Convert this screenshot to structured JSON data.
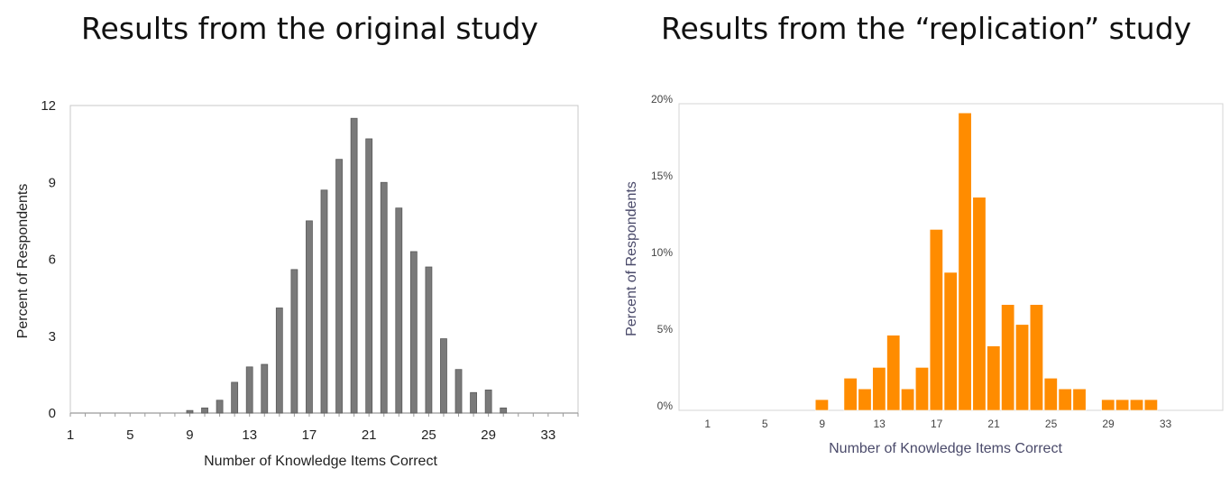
{
  "headings": {
    "left": "Results from the original study",
    "right": "Results from the “replication” study"
  },
  "chart_data": [
    {
      "type": "bar",
      "title": "Results from the original study",
      "xlabel": "Number of Knowledge Items Correct",
      "ylabel": "Percent of Respondents",
      "x_ticks": [
        "1",
        "5",
        "9",
        "13",
        "17",
        "21",
        "25",
        "29",
        "33"
      ],
      "y_ticks": [
        "0",
        "3",
        "6",
        "9",
        "12"
      ],
      "ylim": [
        0,
        12
      ],
      "xlim": [
        1,
        35
      ],
      "color": "#7a7a7a",
      "x": [
        9,
        10,
        11,
        12,
        13,
        14,
        15,
        16,
        17,
        18,
        19,
        20,
        21,
        22,
        23,
        24,
        25,
        26,
        27,
        28,
        29,
        30
      ],
      "values": [
        0.1,
        0.2,
        0.5,
        1.2,
        1.8,
        1.9,
        4.1,
        5.6,
        7.5,
        8.7,
        9.9,
        11.5,
        10.7,
        9.0,
        8.0,
        6.3,
        5.7,
        2.9,
        1.7,
        0.8,
        0.9,
        0.2
      ],
      "grid": false
    },
    {
      "type": "bar",
      "title": "Results from the “replication” study",
      "xlabel": "Number of Knowledge Items Correct",
      "ylabel": "Percent of Respondents",
      "x_ticks": [
        "1",
        "5",
        "9",
        "13",
        "17",
        "21",
        "25",
        "29",
        "33"
      ],
      "y_ticks": [
        "0%",
        "5%",
        "10%",
        "15%",
        "20%"
      ],
      "ylim": [
        0,
        20
      ],
      "xlim": [
        -1,
        37
      ],
      "color": "#ff8c00",
      "x": [
        9,
        11,
        12,
        13,
        14,
        15,
        16,
        17,
        18,
        19,
        20,
        21,
        22,
        23,
        24,
        25,
        26,
        27,
        29,
        30,
        31,
        32
      ],
      "values": [
        0.7,
        2.1,
        1.4,
        2.8,
        4.9,
        1.4,
        2.8,
        11.8,
        9.0,
        19.4,
        13.9,
        4.2,
        6.9,
        5.6,
        6.9,
        2.1,
        1.4,
        1.4,
        0.7,
        0.7,
        0.7,
        0.7
      ],
      "grid": false
    }
  ]
}
